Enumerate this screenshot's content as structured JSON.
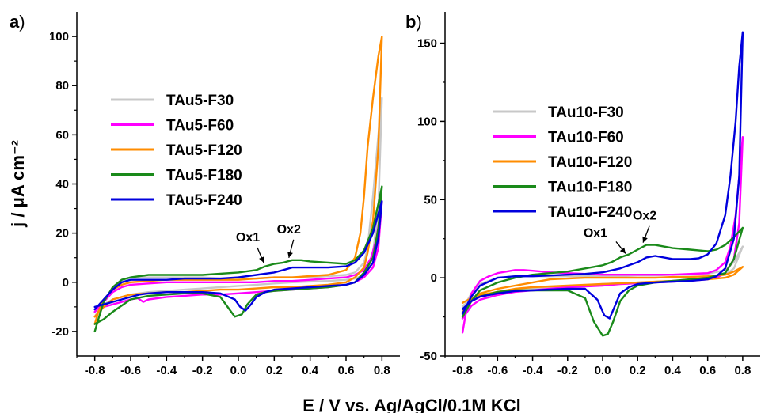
{
  "figure": {
    "xlabel": "E / V vs. Ag/AgCl/0.1M KCl",
    "ylabel": "j / μA cm⁻²"
  },
  "chart_data": [
    {
      "type": "line",
      "panel_label": "a",
      "panel_paren": ")",
      "xlim": [
        -0.9,
        0.9
      ],
      "ylim": [
        -30,
        110
      ],
      "xticks": [
        -0.8,
        -0.6,
        -0.4,
        -0.2,
        0.0,
        0.2,
        0.4,
        0.6,
        0.8
      ],
      "xtick_labels": [
        "-0.8",
        "-0.6",
        "-0.4",
        "-0.2",
        "0.0",
        "0.2",
        "0.4",
        "0.6",
        "0.8"
      ],
      "yticks": [
        -20,
        0,
        20,
        40,
        60,
        80,
        100
      ],
      "ytick_labels": [
        "-20",
        "0",
        "20",
        "40",
        "60",
        "80",
        "100"
      ],
      "legend_position": "center-left",
      "annotations": [
        {
          "text": "Ox1",
          "x": 0.15,
          "y": 7
        },
        {
          "text": "Ox2",
          "x": 0.29,
          "y": 9
        }
      ],
      "series": [
        {
          "name": "TAu5-F30",
          "color": "#c8c8c8",
          "x": [
            -0.8,
            -0.75,
            -0.7,
            -0.65,
            -0.6,
            -0.5,
            -0.4,
            -0.3,
            -0.2,
            -0.1,
            0.0,
            0.1,
            0.2,
            0.3,
            0.4,
            0.5,
            0.6,
            0.65,
            0.7,
            0.72,
            0.75,
            0.78,
            0.8,
            0.78,
            0.75,
            0.72,
            0.7,
            0.65,
            0.6,
            0.5,
            0.4,
            0.3,
            0.2,
            0.1,
            0.0,
            -0.1,
            -0.2,
            -0.3,
            -0.4,
            -0.5,
            -0.6,
            -0.7,
            -0.75,
            -0.8
          ],
          "y": [
            -14,
            -8,
            -2,
            1,
            2,
            2,
            2,
            2,
            2,
            1.5,
            1.5,
            1.5,
            2,
            2,
            2,
            2.5,
            3,
            4,
            8,
            14,
            35,
            60,
            75,
            30,
            12,
            5,
            3,
            1.5,
            1,
            0.5,
            0.3,
            0,
            -0.5,
            -1,
            -1.5,
            -2,
            -2.5,
            -3,
            -3.5,
            -4,
            -5,
            -7,
            -9,
            -12
          ]
        },
        {
          "name": "TAu5-F60",
          "color": "#ff00ff",
          "x": [
            -0.8,
            -0.75,
            -0.7,
            -0.65,
            -0.6,
            -0.5,
            -0.4,
            -0.3,
            -0.2,
            -0.1,
            0.0,
            0.1,
            0.2,
            0.3,
            0.4,
            0.5,
            0.6,
            0.65,
            0.7,
            0.74,
            0.77,
            0.8,
            0.78,
            0.75,
            0.7,
            0.65,
            0.6,
            0.5,
            0.4,
            0.3,
            0.2,
            0.1,
            0.0,
            -0.1,
            -0.2,
            -0.3,
            -0.4,
            -0.5,
            -0.53,
            -0.56,
            -0.6,
            -0.7,
            -0.75,
            -0.8
          ],
          "y": [
            -12,
            -8,
            -4,
            -2,
            -1,
            -0.5,
            0,
            0,
            0,
            0,
            0,
            0,
            0.5,
            0.5,
            1,
            1.5,
            2,
            3,
            5,
            10,
            18,
            33,
            14,
            6,
            2,
            0,
            -1,
            -2,
            -2.5,
            -3,
            -3.5,
            -4,
            -4.5,
            -5,
            -5,
            -5.5,
            -6,
            -7,
            -8,
            -6.5,
            -7,
            -9,
            -10,
            -11
          ]
        },
        {
          "name": "TAu5-F120",
          "color": "#ff8c00",
          "x": [
            -0.8,
            -0.78,
            -0.75,
            -0.7,
            -0.65,
            -0.6,
            -0.5,
            -0.4,
            -0.3,
            -0.2,
            -0.1,
            0.0,
            0.1,
            0.2,
            0.3,
            0.4,
            0.5,
            0.6,
            0.65,
            0.68,
            0.7,
            0.72,
            0.75,
            0.78,
            0.8,
            0.78,
            0.75,
            0.72,
            0.7,
            0.65,
            0.6,
            0.5,
            0.4,
            0.3,
            0.2,
            0.1,
            0.0,
            -0.1,
            -0.2,
            -0.3,
            -0.4,
            -0.5,
            -0.6,
            -0.7,
            -0.75,
            -0.8
          ],
          "y": [
            -17,
            -12,
            -7,
            -3,
            -1,
            0,
            0.5,
            1,
            1,
            1,
            1,
            1,
            1.5,
            2,
            2,
            2.5,
            3,
            5,
            10,
            20,
            35,
            55,
            75,
            92,
            100,
            55,
            25,
            12,
            6,
            2,
            0,
            -1,
            -1.5,
            -2,
            -2,
            -2.5,
            -3,
            -3,
            -3.5,
            -4,
            -4,
            -4.5,
            -5,
            -7,
            -10,
            -14
          ]
        },
        {
          "name": "TAu5-F180",
          "color": "#1a8a1a",
          "x": [
            -0.8,
            -0.78,
            -0.75,
            -0.7,
            -0.65,
            -0.6,
            -0.5,
            -0.4,
            -0.3,
            -0.2,
            -0.1,
            0.0,
            0.1,
            0.15,
            0.2,
            0.25,
            0.3,
            0.35,
            0.4,
            0.5,
            0.6,
            0.65,
            0.7,
            0.75,
            0.78,
            0.8,
            0.78,
            0.75,
            0.7,
            0.65,
            0.6,
            0.5,
            0.4,
            0.3,
            0.2,
            0.15,
            0.1,
            0.05,
            0.02,
            -0.02,
            -0.05,
            -0.1,
            -0.2,
            -0.3,
            -0.4,
            -0.5,
            -0.6,
            -0.7,
            -0.75,
            -0.8
          ],
          "y": [
            -20,
            -15,
            -8,
            -2,
            1,
            2,
            3,
            3,
            3,
            3,
            3.5,
            4,
            5,
            6.5,
            7.5,
            8,
            9,
            9,
            8.5,
            8,
            7.5,
            9,
            13,
            22,
            32,
            39,
            22,
            10,
            4,
            0,
            -1,
            -2,
            -2.5,
            -3,
            -3.5,
            -4,
            -5,
            -9,
            -13,
            -14,
            -11,
            -6,
            -4.5,
            -4.5,
            -5,
            -5.5,
            -7,
            -12,
            -15,
            -17
          ]
        },
        {
          "name": "TAu5-F240",
          "color": "#0000dd",
          "x": [
            -0.8,
            -0.75,
            -0.7,
            -0.65,
            -0.6,
            -0.5,
            -0.4,
            -0.3,
            -0.2,
            -0.1,
            0.0,
            0.1,
            0.15,
            0.2,
            0.25,
            0.3,
            0.35,
            0.4,
            0.5,
            0.6,
            0.65,
            0.7,
            0.75,
            0.78,
            0.8,
            0.78,
            0.75,
            0.7,
            0.65,
            0.6,
            0.5,
            0.4,
            0.3,
            0.2,
            0.15,
            0.1,
            0.07,
            0.04,
            0.01,
            -0.02,
            -0.1,
            -0.2,
            -0.3,
            -0.4,
            -0.5,
            -0.55,
            -0.6,
            -0.65,
            -0.7,
            -0.75,
            -0.8
          ],
          "y": [
            -11,
            -7,
            -3,
            0,
            1,
            1,
            1,
            1.5,
            1.5,
            1.5,
            2,
            3,
            3.5,
            4,
            5,
            6,
            6,
            6,
            6,
            6.5,
            8,
            12,
            20,
            28,
            33,
            18,
            8,
            3,
            0,
            -1,
            -1.5,
            -2,
            -2.5,
            -3,
            -4,
            -6,
            -9,
            -11.5,
            -10,
            -7,
            -4.5,
            -4,
            -4,
            -4,
            -4.5,
            -5,
            -6,
            -7,
            -8,
            -9,
            -10
          ]
        }
      ]
    },
    {
      "type": "line",
      "panel_label": "b",
      "panel_paren": ")",
      "xlim": [
        -0.9,
        0.9
      ],
      "ylim": [
        -50,
        170
      ],
      "xticks": [
        -0.8,
        -0.6,
        -0.4,
        -0.2,
        0.0,
        0.2,
        0.4,
        0.6,
        0.8
      ],
      "xtick_labels": [
        "-0.8",
        "-0.6",
        "-0.4",
        "-0.2",
        "0.0",
        "0.2",
        "0.4",
        "0.6",
        "0.8"
      ],
      "yticks": [
        -50,
        0,
        50,
        100,
        150
      ],
      "ytick_labels": [
        "-50",
        "0",
        "50",
        "100",
        "150"
      ],
      "legend_position": "top-left",
      "annotations": [
        {
          "text": "Ox1",
          "x": 0.14,
          "y": 14
        },
        {
          "text": "Ox2",
          "x": 0.24,
          "y": 21
        }
      ],
      "series": [
        {
          "name": "TAu10-F30",
          "color": "#c8c8c8",
          "x": [
            -0.8,
            -0.75,
            -0.7,
            -0.6,
            -0.5,
            -0.4,
            -0.3,
            -0.2,
            -0.1,
            0.0,
            0.1,
            0.2,
            0.3,
            0.4,
            0.5,
            0.6,
            0.7,
            0.75,
            0.8,
            0.75,
            0.7,
            0.6,
            0.5,
            0.4,
            0.3,
            0.2,
            0.1,
            0.0,
            -0.1,
            -0.2,
            -0.3,
            -0.4,
            -0.5,
            -0.6,
            -0.7,
            -0.75,
            -0.8
          ],
          "y": [
            -20,
            -10,
            -4,
            0,
            1,
            1,
            1,
            1,
            1,
            1,
            1,
            1.5,
            1.5,
            2,
            2,
            2.5,
            5,
            10,
            20,
            6,
            2,
            0,
            -1,
            -2,
            -2.5,
            -3,
            -3.5,
            -4,
            -5,
            -5.5,
            -6,
            -7,
            -8,
            -10,
            -12,
            -14,
            -18
          ]
        },
        {
          "name": "TAu10-F60",
          "color": "#ff00ff",
          "x": [
            -0.8,
            -0.78,
            -0.75,
            -0.7,
            -0.65,
            -0.6,
            -0.5,
            -0.45,
            -0.4,
            -0.3,
            -0.2,
            -0.1,
            0.0,
            0.1,
            0.2,
            0.3,
            0.4,
            0.5,
            0.6,
            0.65,
            0.7,
            0.73,
            0.76,
            0.78,
            0.8,
            0.78,
            0.75,
            0.7,
            0.65,
            0.6,
            0.5,
            0.4,
            0.3,
            0.2,
            0.1,
            0.0,
            -0.1,
            -0.2,
            -0.3,
            -0.4,
            -0.5,
            -0.6,
            -0.7,
            -0.75,
            -0.8
          ],
          "y": [
            -35,
            -22,
            -10,
            -2,
            1,
            3,
            5,
            5,
            4.5,
            3.5,
            3,
            2.5,
            2,
            2,
            2,
            2,
            2,
            2.5,
            3,
            5,
            10,
            20,
            40,
            65,
            90,
            35,
            12,
            3,
            0,
            -1,
            -2,
            -2.5,
            -3,
            -3.5,
            -4,
            -5,
            -5.5,
            -6,
            -7,
            -8,
            -9,
            -11,
            -14,
            -18,
            -26
          ]
        },
        {
          "name": "TAu10-F120",
          "color": "#ff8c00",
          "x": [
            -0.8,
            -0.75,
            -0.7,
            -0.6,
            -0.5,
            -0.4,
            -0.3,
            -0.2,
            -0.1,
            0.0,
            0.1,
            0.2,
            0.3,
            0.4,
            0.5,
            0.6,
            0.7,
            0.75,
            0.8,
            0.75,
            0.7,
            0.6,
            0.5,
            0.4,
            0.3,
            0.2,
            0.1,
            0.0,
            -0.1,
            -0.2,
            -0.3,
            -0.4,
            -0.5,
            -0.6,
            -0.7,
            -0.75,
            -0.8
          ],
          "y": [
            -22,
            -14,
            -10,
            -7,
            -5,
            -3,
            -1,
            -0.5,
            0,
            0,
            0,
            0,
            0,
            0.5,
            0.5,
            1,
            2,
            4,
            7,
            2,
            0,
            -1,
            -1.5,
            -2,
            -2.5,
            -3,
            -3.5,
            -4,
            -4.5,
            -5,
            -5.5,
            -6,
            -7,
            -9,
            -11,
            -13,
            -16
          ]
        },
        {
          "name": "TAu10-F180",
          "color": "#1a8a1a",
          "x": [
            -0.8,
            -0.75,
            -0.7,
            -0.6,
            -0.5,
            -0.4,
            -0.3,
            -0.2,
            -0.1,
            0.0,
            0.05,
            0.1,
            0.15,
            0.2,
            0.25,
            0.3,
            0.4,
            0.5,
            0.6,
            0.65,
            0.7,
            0.75,
            0.8,
            0.75,
            0.7,
            0.6,
            0.5,
            0.4,
            0.3,
            0.2,
            0.15,
            0.1,
            0.06,
            0.03,
            0.0,
            -0.05,
            -0.1,
            -0.2,
            -0.3,
            -0.4,
            -0.5,
            -0.6,
            -0.7,
            -0.75,
            -0.8
          ],
          "y": [
            -25,
            -15,
            -8,
            -3,
            0,
            2,
            3,
            4,
            6,
            8,
            10,
            13,
            15,
            18,
            21,
            21,
            19,
            18,
            17,
            18,
            21,
            26,
            32,
            12,
            3,
            0,
            -1,
            -2,
            -3,
            -5,
            -8,
            -15,
            -28,
            -36,
            -37,
            -28,
            -13,
            -8,
            -8,
            -8,
            -8,
            -9,
            -12,
            -15,
            -20
          ]
        },
        {
          "name": "TAu10-F240",
          "color": "#0000dd",
          "x": [
            -0.8,
            -0.75,
            -0.7,
            -0.6,
            -0.5,
            -0.4,
            -0.3,
            -0.2,
            -0.1,
            0.0,
            0.1,
            0.15,
            0.2,
            0.25,
            0.3,
            0.4,
            0.5,
            0.55,
            0.6,
            0.65,
            0.7,
            0.73,
            0.76,
            0.78,
            0.8,
            0.78,
            0.75,
            0.7,
            0.65,
            0.6,
            0.5,
            0.4,
            0.3,
            0.2,
            0.15,
            0.1,
            0.07,
            0.04,
            0.01,
            -0.03,
            -0.1,
            -0.2,
            -0.3,
            -0.4,
            -0.5,
            -0.6,
            -0.7,
            -0.75,
            -0.8
          ],
          "y": [
            -23,
            -12,
            -5,
            0,
            1,
            1,
            1.5,
            2,
            2.5,
            3.5,
            6,
            8,
            10,
            13,
            14,
            12,
            12,
            12.5,
            15,
            22,
            40,
            65,
            100,
            135,
            157,
            65,
            25,
            6,
            1,
            -1,
            -2,
            -2.5,
            -3,
            -4,
            -6,
            -10,
            -18,
            -26,
            -24,
            -14,
            -7,
            -7,
            -7.5,
            -8,
            -8.5,
            -10,
            -12,
            -15,
            -20
          ]
        }
      ]
    }
  ]
}
